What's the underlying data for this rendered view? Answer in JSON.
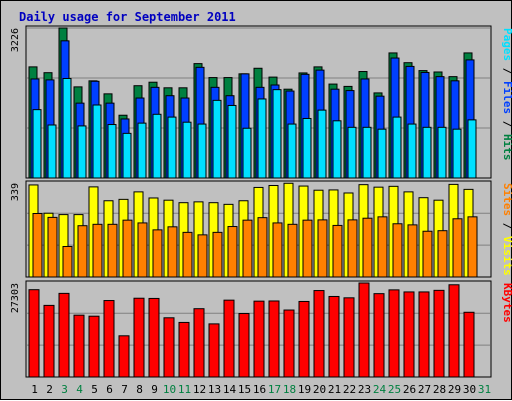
{
  "chart_data": {
    "type": "bar",
    "title": "Daily usage for September 2011",
    "categories": [
      "1",
      "2",
      "3",
      "4",
      "5",
      "6",
      "7",
      "8",
      "9",
      "10",
      "11",
      "12",
      "13",
      "14",
      "15",
      "16",
      "17",
      "18",
      "19",
      "20",
      "21",
      "22",
      "23",
      "24",
      "25",
      "26",
      "27",
      "28",
      "29",
      "30",
      "31"
    ],
    "weekend_days": [
      "3",
      "4",
      "10",
      "11",
      "17",
      "18",
      "24",
      "25",
      "31"
    ],
    "panels": [
      {
        "id": "top",
        "ymax_label": "3226",
        "ymax": 3226,
        "ylabel_parts": [
          {
            "text": "Pages",
            "color": "#00e0ff"
          },
          {
            "text": " / ",
            "color": "#000000"
          },
          {
            "text": "Files",
            "color": "#0040ff"
          },
          {
            "text": " / ",
            "color": "#000000"
          },
          {
            "text": "Hits",
            "color": "#008040"
          }
        ],
        "series": [
          {
            "name": "Hits",
            "color": "#008040",
            "values": [
              2390,
              2265,
              3226,
              1960,
              2090,
              1810,
              1350,
              1985,
              2060,
              1940,
              1940,
              2460,
              2160,
              2160,
              2240,
              2360,
              2170,
              1910,
              2260,
              2390,
              2020,
              1970,
              2290,
              1830,
              2690,
              2480,
              2310,
              2280,
              2180,
              2690,
              null
            ]
          },
          {
            "name": "Files",
            "color": "#0040ff",
            "values": [
              2130,
              2110,
              2950,
              1610,
              2080,
              1610,
              1270,
              1720,
              1950,
              1770,
              1720,
              2380,
              1950,
              1770,
              2240,
              1950,
              2000,
              1870,
              2230,
              2320,
              1910,
              1880,
              2130,
              1760,
              2580,
              2400,
              2270,
              2180,
              2090,
              2540,
              null
            ]
          },
          {
            "name": "Pages",
            "color": "#00e0ff",
            "values": [
              1470,
              1140,
              2140,
              1120,
              1570,
              1150,
              960,
              1180,
              1370,
              1310,
              1200,
              1160,
              1670,
              1560,
              1070,
              1700,
              1900,
              1160,
              1280,
              1460,
              1230,
              1090,
              1090,
              1050,
              1310,
              1160,
              1090,
              1090,
              1050,
              1250,
              null
            ]
          }
        ]
      },
      {
        "id": "middle",
        "ymax_label": "339",
        "ymax": 339,
        "ylabel_parts": [
          {
            "text": "Sites",
            "color": "#ff8000"
          },
          {
            "text": " / ",
            "color": "#000000"
          },
          {
            "text": "Visits",
            "color": "#ffff00"
          }
        ],
        "series": [
          {
            "name": "Visits",
            "color": "#ffff00",
            "values": [
              332,
              230,
              225,
              225,
              325,
              275,
              280,
              307,
              285,
              277,
              268,
              271,
              268,
              262,
              275,
              323,
              330,
              338,
              328,
              313,
              314,
              303,
              333,
              324,
              327,
              307,
              286,
              277,
              334,
              316,
              null
            ]
          },
          {
            "name": "Sites",
            "color": "#ff8000",
            "values": [
              229,
              215,
              110,
              185,
              190,
              190,
              205,
              195,
              170,
              181,
              161,
              152,
              161,
              182,
              205,
              214,
              195,
              190,
              205,
              206,
              186,
              206,
              212,
              217,
              192,
              188,
              165,
              167,
              210,
              217,
              null
            ]
          }
        ]
      },
      {
        "id": "bottom",
        "ymax_label": "27303",
        "ymax": 27303,
        "ylabel_parts": [
          {
            "text": "KBytes",
            "color": "#ff0000"
          }
        ],
        "series": [
          {
            "name": "KBytes",
            "color": "#ff0000",
            "values": [
              25360,
              20800,
              24290,
              17960,
              17660,
              22210,
              11970,
              22880,
              22820,
              17200,
              15850,
              19840,
              15430,
              22320,
              18440,
              22030,
              22080,
              19450,
              21940,
              25110,
              23390,
              23000,
              27303,
              24210,
              25310,
              24710,
              24710,
              25170,
              26790,
              18800,
              null
            ]
          }
        ]
      }
    ]
  }
}
